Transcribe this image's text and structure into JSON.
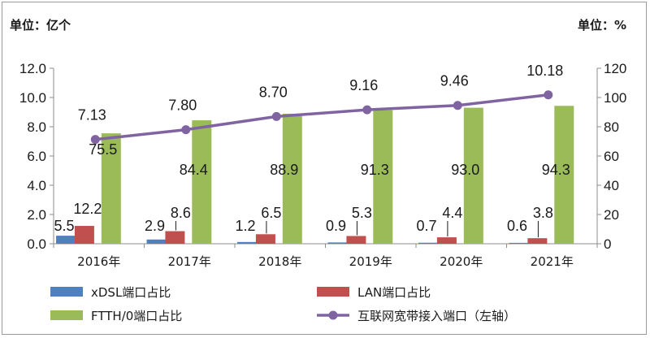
{
  "chart_data": {
    "type": "bar",
    "left_unit": "单位：亿个",
    "right_unit": "单位：%",
    "categories": [
      "2016年",
      "2017年",
      "2018年",
      "2019年",
      "2020年",
      "2021年"
    ],
    "left_axis": {
      "min": 0,
      "max": 12,
      "step": 2,
      "tick_labels": [
        "0.0",
        "2.0",
        "4.0",
        "6.0",
        "8.0",
        "10.0",
        "12.0"
      ]
    },
    "right_axis": {
      "min": 0,
      "max": 120,
      "step": 20,
      "tick_labels": [
        "0",
        "20",
        "40",
        "60",
        "80",
        "100",
        "120"
      ]
    },
    "grid": false,
    "legend_position": "bottom",
    "series": [
      {
        "name": "xDSL端口占比",
        "type": "bar",
        "axis": "right",
        "color": "#4f81bd",
        "values": [
          5.5,
          2.9,
          1.2,
          0.9,
          0.7,
          0.6
        ],
        "labels": [
          "5.5",
          "2.9",
          "1.2",
          "0.9",
          "0.7",
          "0.6"
        ]
      },
      {
        "name": "LAN端口占比",
        "type": "bar",
        "axis": "right",
        "color": "#c0504d",
        "values": [
          12.2,
          8.6,
          6.5,
          5.3,
          4.4,
          3.8
        ],
        "labels": [
          "12.2",
          "8.6",
          "6.5",
          "5.3",
          "4.4",
          "3.8"
        ]
      },
      {
        "name": "FTTH/0端口占比",
        "type": "bar",
        "axis": "right",
        "color": "#9bbb59",
        "values": [
          75.5,
          84.4,
          88.9,
          91.3,
          93.0,
          94.3
        ],
        "labels": [
          "75.5",
          "84.4",
          "88.9",
          "91.3",
          "93.0",
          "94.3"
        ]
      },
      {
        "name": "互联网宽带接入端口（左轴）",
        "type": "line",
        "axis": "left",
        "color": "#8064a2",
        "values": [
          7.13,
          7.8,
          8.7,
          9.16,
          9.46,
          10.18
        ],
        "labels": [
          "7.13",
          "7.80",
          "8.70",
          "9.16",
          "9.46",
          "10.18"
        ]
      }
    ]
  }
}
